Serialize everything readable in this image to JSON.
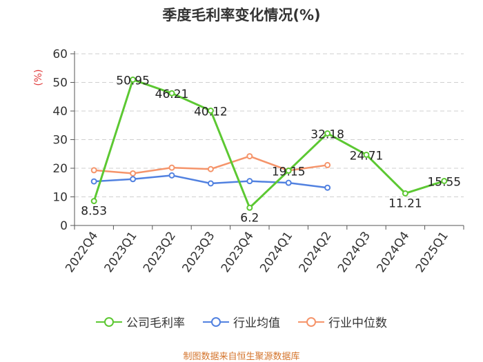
{
  "title": "季度毛利率变化情况(%)",
  "source": "制图数据来自恒生聚源数据库",
  "chart_data": {
    "type": "line",
    "title": "季度毛利率变化情况(%)",
    "ylabel": "(%)",
    "ylim": [
      0,
      60
    ],
    "yticks": [
      "0",
      "10",
      "20",
      "30",
      "40",
      "50",
      "60"
    ],
    "grid": true,
    "legend_position": "bottom",
    "categories": [
      "2022Q4",
      "2023Q1",
      "2023Q2",
      "2023Q3",
      "2023Q4",
      "2024Q1",
      "2024Q2",
      "2024Q3",
      "2024Q4",
      "2025Q1"
    ],
    "series": [
      {
        "name": "公司毛利率",
        "color": "#5cc832",
        "values": [
          8.53,
          50.95,
          46.21,
          40.12,
          6.2,
          19.15,
          32.18,
          24.71,
          11.21,
          15.55
        ],
        "labels": [
          "8.53",
          "50.95",
          "46.21",
          "40.12",
          "6.2",
          "19.15",
          "32.18",
          "24.71",
          "11.21",
          "15.55"
        ]
      },
      {
        "name": "行业均值",
        "color": "#5181e0",
        "values": [
          15.4,
          16.2,
          17.5,
          14.7,
          15.5,
          14.9,
          13.2,
          null,
          null,
          null
        ]
      },
      {
        "name": "行业中位数",
        "color": "#f5946a",
        "values": [
          19.3,
          18.2,
          20.2,
          19.7,
          24.2,
          19.2,
          21.1,
          null,
          null,
          null
        ]
      }
    ]
  }
}
